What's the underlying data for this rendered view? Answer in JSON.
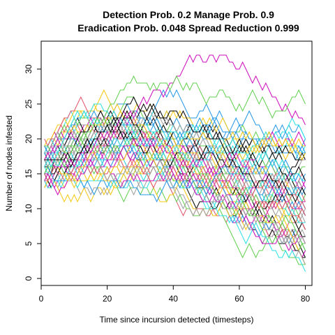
{
  "chart_data": {
    "type": "line",
    "title": "Detection Prob. 0.2 Manage Prob. 0.9",
    "subtitle": "Eradication Prob. 0.048 Spread Reduction 0.999",
    "xlabel": "Time since incursion detected (timesteps)",
    "ylabel": "Number of nodes infested",
    "xlim": [
      0,
      82
    ],
    "ylim": [
      -1,
      34
    ],
    "xticks": [
      0,
      20,
      40,
      60,
      80
    ],
    "yticks": [
      0,
      5,
      10,
      15,
      20,
      25,
      30
    ],
    "grid": false,
    "legend": "none",
    "colors": [
      "#000000",
      "#DF536B",
      "#61D04F",
      "#2297E6",
      "#28E2E5",
      "#CD0BBC",
      "#F5C710",
      "#9E9E9E"
    ],
    "series_count": 64,
    "start_values": [
      14,
      15,
      16,
      17,
      18,
      19
    ],
    "x_start": 1,
    "x_end": 80,
    "notable_series": [
      {
        "color": "#CD0BBC",
        "peak": 33,
        "peak_x": 46,
        "end_value": 20
      },
      {
        "color": "#61D04F",
        "peak": 31,
        "peak_x": 28,
        "end_value": 25
      },
      {
        "color": "#28E2E5",
        "peak": 27,
        "peak_x": 10,
        "end_value": 12
      },
      {
        "color": "#000000",
        "peak": 26,
        "peak_x": 25,
        "end_value": 10
      }
    ]
  }
}
